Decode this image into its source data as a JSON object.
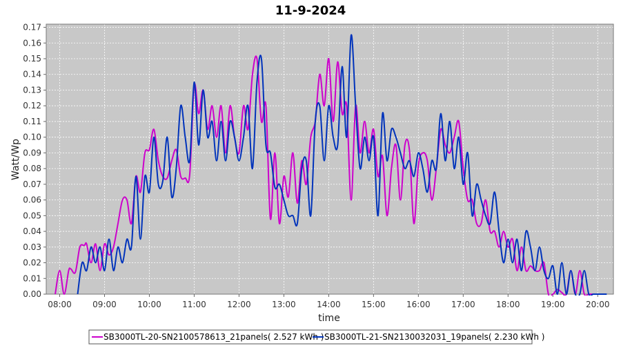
{
  "chart_data": {
    "type": "line",
    "title": "11-9-2024",
    "xlabel": "time",
    "ylabel": "Watt/Wp",
    "x_unit": "hours",
    "xlim": [
      7.7,
      20.35
    ],
    "ylim": [
      0,
      0.172
    ],
    "grid": true,
    "plot_background": "#c8c8c8",
    "grid_color": "#ffffff",
    "legend_position": "bottom-center",
    "x_ticks": [
      {
        "value": 8,
        "label": "08:00"
      },
      {
        "value": 9,
        "label": "09:00"
      },
      {
        "value": 10,
        "label": "10:00"
      },
      {
        "value": 11,
        "label": "11:00"
      },
      {
        "value": 12,
        "label": "12:00"
      },
      {
        "value": 13,
        "label": "13:00"
      },
      {
        "value": 14,
        "label": "14:00"
      },
      {
        "value": 15,
        "label": "15:00"
      },
      {
        "value": 16,
        "label": "16:00"
      },
      {
        "value": 17,
        "label": "17:00"
      },
      {
        "value": 18,
        "label": "18:00"
      },
      {
        "value": 19,
        "label": "19:00"
      },
      {
        "value": 20,
        "label": "20:00"
      }
    ],
    "y_ticks": [
      {
        "value": 0.0,
        "label": "0.00"
      },
      {
        "value": 0.01,
        "label": "0.01"
      },
      {
        "value": 0.02,
        "label": "0.02"
      },
      {
        "value": 0.03,
        "label": "0.03"
      },
      {
        "value": 0.04,
        "label": "0.04"
      },
      {
        "value": 0.05,
        "label": "0.05"
      },
      {
        "value": 0.06,
        "label": "0.06"
      },
      {
        "value": 0.07,
        "label": "0.07"
      },
      {
        "value": 0.08,
        "label": "0.08"
      },
      {
        "value": 0.09,
        "label": "0.09"
      },
      {
        "value": 0.1,
        "label": "0.10"
      },
      {
        "value": 0.11,
        "label": "0.11"
      },
      {
        "value": 0.12,
        "label": "0.12"
      },
      {
        "value": 0.13,
        "label": "0.13"
      },
      {
        "value": 0.14,
        "label": "0.14"
      },
      {
        "value": 0.15,
        "label": "0.15"
      },
      {
        "value": 0.16,
        "label": "0.16"
      },
      {
        "value": 0.17,
        "label": "0.17"
      }
    ],
    "series": [
      {
        "name": "SB3000TL-20-SN2100578613_21panels( 2.527 kWh )",
        "color": "#cc00cc",
        "x": [
          7.9,
          8.0,
          8.1,
          8.2,
          8.25,
          8.35,
          8.45,
          8.55,
          8.6,
          8.7,
          8.8,
          8.9,
          9.0,
          9.1,
          9.2,
          9.3,
          9.4,
          9.5,
          9.6,
          9.7,
          9.8,
          9.9,
          10.0,
          10.1,
          10.2,
          10.3,
          10.4,
          10.5,
          10.6,
          10.7,
          10.8,
          10.9,
          11.0,
          11.1,
          11.2,
          11.3,
          11.4,
          11.5,
          11.6,
          11.7,
          11.8,
          11.9,
          12.0,
          12.1,
          12.2,
          12.3,
          12.4,
          12.5,
          12.6,
          12.7,
          12.8,
          12.9,
          13.0,
          13.1,
          13.2,
          13.3,
          13.4,
          13.5,
          13.6,
          13.7,
          13.8,
          13.9,
          14.0,
          14.1,
          14.2,
          14.3,
          14.4,
          14.5,
          14.6,
          14.7,
          14.8,
          14.9,
          15.0,
          15.1,
          15.2,
          15.3,
          15.4,
          15.5,
          15.6,
          15.7,
          15.8,
          15.9,
          16.0,
          16.1,
          16.2,
          16.3,
          16.4,
          16.5,
          16.6,
          16.7,
          16.8,
          16.9,
          17.0,
          17.1,
          17.2,
          17.3,
          17.4,
          17.5,
          17.6,
          17.7,
          17.8,
          17.9,
          18.0,
          18.1,
          18.2,
          18.3,
          18.4,
          18.5,
          18.6,
          18.7,
          18.8,
          18.9,
          19.0,
          19.1,
          19.2,
          19.3,
          19.4,
          19.5,
          19.6,
          19.7,
          19.8,
          19.9,
          20.0,
          20.1
        ],
        "y": [
          0.0,
          0.015,
          0.0,
          0.015,
          0.016,
          0.014,
          0.03,
          0.031,
          0.032,
          0.02,
          0.032,
          0.015,
          0.032,
          0.025,
          0.03,
          0.045,
          0.06,
          0.06,
          0.045,
          0.075,
          0.065,
          0.09,
          0.092,
          0.105,
          0.085,
          0.075,
          0.074,
          0.085,
          0.092,
          0.075,
          0.074,
          0.076,
          0.133,
          0.115,
          0.13,
          0.105,
          0.12,
          0.1,
          0.12,
          0.09,
          0.12,
          0.1,
          0.09,
          0.12,
          0.105,
          0.14,
          0.15,
          0.11,
          0.12,
          0.048,
          0.09,
          0.045,
          0.075,
          0.062,
          0.09,
          0.058,
          0.085,
          0.07,
          0.1,
          0.11,
          0.14,
          0.12,
          0.15,
          0.11,
          0.148,
          0.115,
          0.12,
          0.06,
          0.12,
          0.09,
          0.11,
          0.09,
          0.105,
          0.075,
          0.088,
          0.05,
          0.08,
          0.095,
          0.06,
          0.095,
          0.092,
          0.045,
          0.082,
          0.09,
          0.085,
          0.06,
          0.08,
          0.105,
          0.095,
          0.09,
          0.1,
          0.11,
          0.08,
          0.06,
          0.06,
          0.045,
          0.045,
          0.06,
          0.04,
          0.04,
          0.03,
          0.04,
          0.03,
          0.035,
          0.015,
          0.03,
          0.015,
          0.018,
          0.015,
          0.015,
          0.02,
          0.0,
          0.0,
          0.003,
          0.001,
          0.0,
          0.015,
          0.0,
          0.015,
          0.0,
          0.0,
          0.0,
          0.0,
          0.0
        ]
      },
      {
        "name": "SB3000TL-21-SN2130032031_19panels( 2.230 kWh )",
        "color": "#0033bb",
        "x": [
          8.4,
          8.5,
          8.6,
          8.7,
          8.8,
          8.9,
          9.0,
          9.1,
          9.2,
          9.3,
          9.4,
          9.5,
          9.6,
          9.7,
          9.8,
          9.9,
          10.0,
          10.1,
          10.2,
          10.3,
          10.4,
          10.5,
          10.6,
          10.7,
          10.8,
          10.9,
          11.0,
          11.1,
          11.2,
          11.3,
          11.4,
          11.5,
          11.6,
          11.7,
          11.8,
          11.9,
          12.0,
          12.1,
          12.2,
          12.3,
          12.4,
          12.5,
          12.6,
          12.7,
          12.8,
          12.9,
          13.0,
          13.1,
          13.2,
          13.3,
          13.4,
          13.5,
          13.6,
          13.7,
          13.8,
          13.9,
          14.0,
          14.1,
          14.2,
          14.3,
          14.4,
          14.5,
          14.6,
          14.7,
          14.8,
          14.9,
          15.0,
          15.1,
          15.2,
          15.3,
          15.4,
          15.5,
          15.6,
          15.7,
          15.8,
          15.9,
          16.0,
          16.1,
          16.2,
          16.3,
          16.4,
          16.5,
          16.6,
          16.7,
          16.8,
          16.9,
          17.0,
          17.1,
          17.2,
          17.3,
          17.4,
          17.5,
          17.6,
          17.7,
          17.8,
          17.9,
          18.0,
          18.1,
          18.2,
          18.3,
          18.4,
          18.5,
          18.6,
          18.7,
          18.8,
          18.9,
          19.0,
          19.1,
          19.2,
          19.3,
          19.4,
          19.5,
          19.6,
          19.7,
          19.8,
          19.9,
          20.0,
          20.1,
          20.2
        ],
        "y": [
          0.0,
          0.02,
          0.015,
          0.03,
          0.02,
          0.03,
          0.015,
          0.035,
          0.015,
          0.03,
          0.02,
          0.035,
          0.03,
          0.075,
          0.035,
          0.075,
          0.065,
          0.1,
          0.07,
          0.072,
          0.1,
          0.062,
          0.08,
          0.12,
          0.1,
          0.085,
          0.135,
          0.095,
          0.13,
          0.1,
          0.11,
          0.085,
          0.11,
          0.085,
          0.11,
          0.1,
          0.085,
          0.1,
          0.12,
          0.08,
          0.135,
          0.15,
          0.095,
          0.09,
          0.068,
          0.07,
          0.06,
          0.05,
          0.05,
          0.045,
          0.08,
          0.085,
          0.05,
          0.11,
          0.12,
          0.085,
          0.12,
          0.1,
          0.095,
          0.145,
          0.1,
          0.165,
          0.12,
          0.08,
          0.1,
          0.085,
          0.1,
          0.05,
          0.115,
          0.085,
          0.105,
          0.1,
          0.09,
          0.08,
          0.085,
          0.075,
          0.09,
          0.08,
          0.065,
          0.085,
          0.08,
          0.115,
          0.085,
          0.11,
          0.08,
          0.1,
          0.07,
          0.09,
          0.05,
          0.07,
          0.06,
          0.05,
          0.045,
          0.065,
          0.04,
          0.02,
          0.035,
          0.02,
          0.035,
          0.015,
          0.04,
          0.03,
          0.015,
          0.03,
          0.015,
          0.01,
          0.018,
          0.0,
          0.02,
          0.0,
          0.015,
          0.0,
          0.0,
          0.015,
          0.0,
          0.0,
          0.0,
          0.0,
          0.0
        ]
      }
    ]
  }
}
